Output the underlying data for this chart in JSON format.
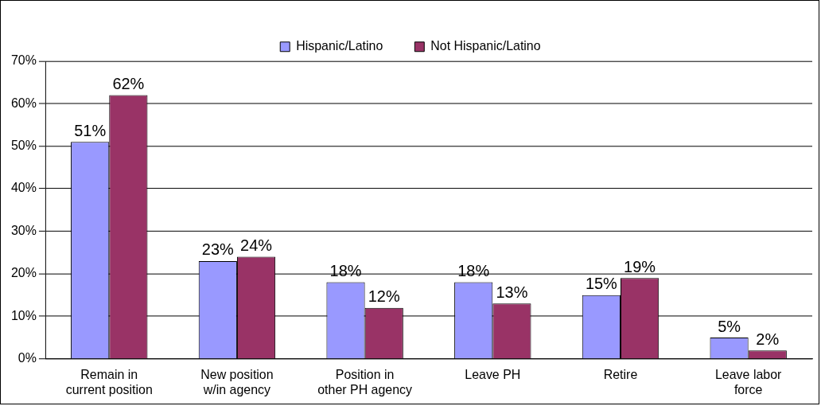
{
  "chart_data": {
    "type": "bar",
    "categories": [
      "Remain in current position",
      "New position w/in agency",
      "Position in other PH agency",
      "Leave PH",
      "Retire",
      "Leave labor force"
    ],
    "series": [
      {
        "name": "Hispanic/Latino",
        "color": "#9999ff",
        "values": [
          51,
          23,
          18,
          18,
          15,
          5
        ],
        "value_labels": [
          "51%",
          "23%",
          "18%",
          "18%",
          "15%",
          "5%"
        ]
      },
      {
        "name": "Not Hispanic/Latino",
        "color": "#993366",
        "values": [
          62,
          24,
          12,
          13,
          19,
          2
        ],
        "value_labels": [
          "62%",
          "24%",
          "12%",
          "13%",
          "19%",
          "2%"
        ]
      }
    ],
    "ylim": [
      0,
      70
    ],
    "yticks": [
      {
        "value": 0,
        "label": "0%"
      },
      {
        "value": 10,
        "label": "10%"
      },
      {
        "value": 20,
        "label": "20%"
      },
      {
        "value": 30,
        "label": "30%"
      },
      {
        "value": 40,
        "label": "40%"
      },
      {
        "value": 50,
        "label": "50%"
      },
      {
        "value": 60,
        "label": "60%"
      },
      {
        "value": 70,
        "label": "70%"
      }
    ],
    "grid": "y",
    "legend": "top"
  }
}
